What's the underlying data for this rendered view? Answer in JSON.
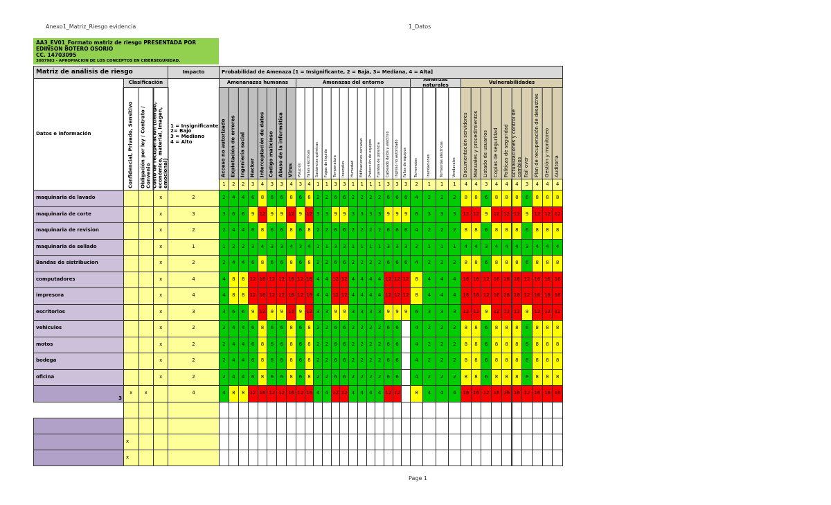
{
  "header": {
    "file": "Anexo1_Matriz_Riesgo evidencia",
    "sheet": "1_Datos",
    "footer": "Page 1"
  },
  "title_box": {
    "line1": "AA3_EV01_Formato matriz de riesgo PRESENTADA POR",
    "line2": "EDINSON BOTERO OSORIO",
    "line3": "CC. 14703095",
    "line4": "3087983 - APROPIACION DE LOS CONCEPTOS EN CIBERSEGURIDAD."
  },
  "table": {
    "title": "Matriz de análisis de riesgo",
    "impact_header": "Impacto",
    "probability_header": "Probabilidad de Amenaza [1 = Insignificante, 2 = Baja,  3= Mediana, 4 = Alta]",
    "classification_header": "Clasificación",
    "data_header": "Datos e información",
    "classification_columns": [
      "Confidencial, Privado, Sensitivo",
      "Obligación por ley / Contrato / Convenio",
      "Costo de recuperación (tiempo, económico, material, imagen, emocional)"
    ],
    "impact_legend": [
      "1 = Insignificante",
      "2= Bajo",
      "3 = Mediano",
      "4 = Alto"
    ],
    "cell_colors": {
      "low": "#00cc00",
      "medium": "#ffff00",
      "high": "#ff0000"
    },
    "groups": [
      {
        "name": "Amenanazas humanas",
        "columns": [
          "Acceso no autorizado",
          "Explotación de errores",
          "Ingeniería social",
          "Hacker",
          "Interceptación de datos",
          "Codigo malicioso",
          "Abuso de la informática",
          "Virus"
        ]
      },
      {
        "name": "Amenazas del entorno",
        "columns": [
          "Polución",
          "Fallas electricas",
          "Sustancias químicas",
          "Fugas de liquido",
          "Temperatura",
          "Incendios",
          "Humedad",
          "Edificaciones cercanas",
          "Protección de equipos",
          "Fuentes de potencia",
          "Cableado datos y electrico",
          "Ingreso no autorizado",
          "Fallas de equipos"
        ]
      },
      {
        "name": "Amenzas naturales",
        "columns": [
          "Terremotos",
          "Inundaciones",
          "Tormentas eléctricas",
          "Vendavales"
        ]
      },
      {
        "name": "Vulnerabilidades",
        "columns": [
          "Documentación servidores",
          "Manuales y procedimientos",
          "Listado de usuarios",
          "Copias de seguridad",
          "Politicas de seguridad",
          "Actualizaciones y control de cambios",
          "Fail over",
          "Plan de recuperación de desastres",
          "Gestión y monitoreo",
          "Auditoria"
        ]
      }
    ],
    "probabilities": [
      1,
      2,
      2,
      3,
      4,
      3,
      3,
      4,
      3,
      4,
      1,
      1,
      3,
      3,
      1,
      1,
      1,
      1,
      3,
      3,
      3,
      2,
      1,
      1,
      1,
      4,
      4,
      3,
      4,
      4,
      4,
      3,
      4,
      4,
      4
    ],
    "rows": [
      {
        "name": "maquinaria de lavado",
        "classification": [
          null,
          null,
          "x"
        ],
        "impact": 2,
        "values": [
          2,
          4,
          4,
          6,
          8,
          6,
          6,
          8,
          6,
          8,
          2,
          2,
          6,
          6,
          2,
          2,
          2,
          2,
          6,
          6,
          6,
          4,
          2,
          2,
          2,
          8,
          8,
          6,
          8,
          8,
          8,
          6,
          8,
          8,
          8
        ]
      },
      {
        "name": "maquinaria de corte",
        "classification": [
          null,
          null,
          "x"
        ],
        "impact": 3,
        "values": [
          3,
          6,
          6,
          9,
          12,
          9,
          9,
          12,
          9,
          12,
          3,
          3,
          9,
          9,
          3,
          3,
          3,
          3,
          9,
          9,
          9,
          6,
          3,
          3,
          3,
          12,
          12,
          9,
          12,
          12,
          12,
          9,
          12,
          12,
          12
        ]
      },
      {
        "name": "maquinaria de revision",
        "classification": [
          null,
          null,
          "x"
        ],
        "impact": 2,
        "values": [
          2,
          4,
          4,
          6,
          8,
          6,
          6,
          8,
          6,
          8,
          2,
          2,
          6,
          6,
          2,
          2,
          2,
          2,
          6,
          6,
          6,
          4,
          2,
          2,
          2,
          8,
          8,
          6,
          8,
          8,
          8,
          6,
          8,
          8,
          8
        ]
      },
      {
        "name": "maquinaria de sellado",
        "classification": [
          null,
          null,
          "x"
        ],
        "impact": 1,
        "values": [
          1,
          2,
          2,
          3,
          4,
          3,
          3,
          4,
          3,
          4,
          1,
          1,
          3,
          3,
          1,
          1,
          1,
          1,
          3,
          3,
          3,
          2,
          1,
          1,
          1,
          4,
          4,
          3,
          4,
          4,
          4,
          3,
          4,
          4,
          4
        ]
      },
      {
        "name": "Bandas de sistribucion",
        "classification": [
          null,
          null,
          "x"
        ],
        "impact": 2,
        "values": [
          2,
          4,
          4,
          6,
          8,
          6,
          6,
          8,
          6,
          8,
          2,
          2,
          6,
          6,
          2,
          2,
          2,
          2,
          6,
          6,
          6,
          4,
          2,
          2,
          2,
          8,
          8,
          6,
          8,
          8,
          8,
          6,
          8,
          8,
          8
        ]
      },
      {
        "name": "computadores",
        "classification": [
          null,
          null,
          "x"
        ],
        "impact": 4,
        "values": [
          4,
          8,
          8,
          12,
          16,
          12,
          12,
          16,
          12,
          16,
          4,
          4,
          12,
          12,
          4,
          4,
          4,
          4,
          12,
          12,
          12,
          8,
          4,
          4,
          4,
          16,
          16,
          12,
          16,
          16,
          16,
          12,
          16,
          16,
          16
        ]
      },
      {
        "name": "impresora",
        "classification": [
          null,
          null,
          "x"
        ],
        "impact": 4,
        "values": [
          4,
          8,
          8,
          12,
          16,
          12,
          12,
          16,
          12,
          16,
          4,
          4,
          12,
          12,
          4,
          4,
          4,
          4,
          12,
          12,
          12,
          8,
          4,
          4,
          4,
          16,
          16,
          12,
          16,
          16,
          16,
          12,
          16,
          16,
          16
        ]
      },
      {
        "name": "escritorios",
        "classification": [
          null,
          null,
          "x"
        ],
        "impact": 3,
        "values": [
          3,
          6,
          6,
          9,
          12,
          9,
          9,
          12,
          9,
          12,
          3,
          3,
          9,
          9,
          3,
          3,
          3,
          3,
          9,
          9,
          9,
          6,
          3,
          3,
          3,
          12,
          12,
          9,
          12,
          12,
          12,
          9,
          12,
          12,
          12
        ]
      },
      {
        "name": "vehiculos",
        "classification": [
          null,
          null,
          "x"
        ],
        "impact": 2,
        "values": [
          2,
          4,
          4,
          6,
          8,
          6,
          6,
          8,
          6,
          8,
          2,
          2,
          6,
          6,
          2,
          2,
          2,
          2,
          6,
          6,
          null,
          4,
          2,
          2,
          2,
          8,
          8,
          6,
          8,
          8,
          8,
          6,
          8,
          8,
          8
        ]
      },
      {
        "name": "motos",
        "classification": [
          null,
          null,
          "x"
        ],
        "impact": 2,
        "values": [
          2,
          4,
          4,
          6,
          8,
          6,
          6,
          8,
          6,
          8,
          2,
          2,
          6,
          6,
          2,
          2,
          2,
          2,
          6,
          6,
          null,
          4,
          2,
          2,
          2,
          8,
          8,
          6,
          8,
          8,
          8,
          6,
          8,
          8,
          8
        ]
      },
      {
        "name": "bodega",
        "classification": [
          null,
          null,
          "x"
        ],
        "impact": 2,
        "values": [
          2,
          4,
          4,
          6,
          8,
          6,
          6,
          8,
          6,
          8,
          2,
          2,
          6,
          6,
          2,
          2,
          2,
          2,
          6,
          6,
          null,
          4,
          2,
          2,
          2,
          8,
          8,
          6,
          8,
          8,
          8,
          6,
          8,
          8,
          8
        ]
      },
      {
        "name": "oficina",
        "classification": [
          null,
          null,
          "x"
        ],
        "impact": 2,
        "values": [
          2,
          4,
          4,
          6,
          8,
          6,
          6,
          8,
          6,
          8,
          2,
          2,
          6,
          6,
          2,
          2,
          2,
          2,
          6,
          6,
          null,
          4,
          2,
          2,
          2,
          8,
          8,
          6,
          8,
          8,
          8,
          6,
          8,
          8,
          8
        ]
      },
      {
        "name": null,
        "label": "3",
        "classification": [
          "x",
          "x",
          null
        ],
        "impact": 4,
        "values": [
          4,
          8,
          8,
          12,
          16,
          12,
          12,
          16,
          12,
          16,
          4,
          4,
          12,
          12,
          4,
          4,
          4,
          4,
          12,
          12,
          null,
          8,
          4,
          4,
          4,
          16,
          16,
          12,
          16,
          16,
          16,
          12,
          16,
          16,
          16
        ]
      }
    ],
    "blank_rows": [
      {
        "classification": [
          null,
          null,
          null
        ]
      },
      {
        "classification": [
          null,
          null,
          null
        ]
      },
      {
        "classification": [
          "x",
          null,
          null
        ]
      },
      {
        "classification": [
          "x",
          null,
          null
        ]
      }
    ]
  }
}
